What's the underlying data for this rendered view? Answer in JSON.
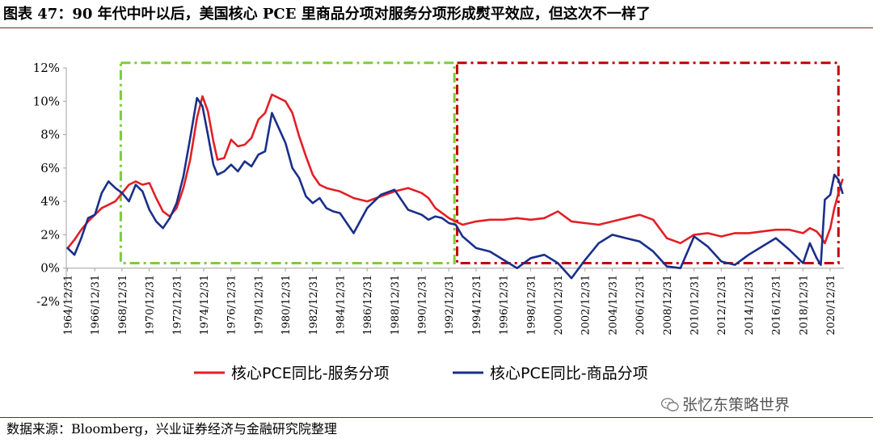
{
  "header": {
    "title": "图表 47：90 年代中叶以后，美国核心 PCE 里商品分项对服务分项形成熨平效应，但这次不一样了"
  },
  "footer": {
    "source": "数据来源：Bloomberg，兴业证券经济与金融研究院整理",
    "watermark": "张忆东策略世界",
    "watermark_icon": "wechat-icon"
  },
  "colors": {
    "services": "#e31f26",
    "goods": "#1a2f8a",
    "green_box": "#7dcc3a",
    "red_box": "#c00000",
    "axis": "#a0a0a0"
  },
  "chart_data": {
    "type": "line",
    "title": "",
    "xlabel": "",
    "ylabel": "",
    "ylim": [
      -2,
      12
    ],
    "xlim": [
      1964.9,
      2022.0
    ],
    "y_ticks": [
      -2,
      0,
      2,
      4,
      6,
      8,
      10,
      12
    ],
    "y_tick_labels": [
      "-2%",
      "0%",
      "2%",
      "4%",
      "6%",
      "8%",
      "10%",
      "12%"
    ],
    "x_ticks": [
      1964.99,
      1966.99,
      1968.99,
      1970.99,
      1972.99,
      1974.99,
      1976.99,
      1978.99,
      1980.99,
      1982.99,
      1984.99,
      1986.99,
      1988.99,
      1990.99,
      1992.99,
      1994.99,
      1996.99,
      1998.99,
      2000.99,
      2002.99,
      2004.99,
      2006.99,
      2008.99,
      2010.99,
      2012.99,
      2014.99,
      2016.99,
      2018.99,
      2020.99
    ],
    "x_tick_labels": [
      "1964/12/31",
      "1966/12/31",
      "1968/12/31",
      "1970/12/31",
      "1972/12/31",
      "1974/12/31",
      "1976/12/31",
      "1978/12/31",
      "1980/12/31",
      "1982/12/31",
      "1984/12/31",
      "1986/12/31",
      "1988/12/31",
      "1990/12/31",
      "1992/12/31",
      "1994/12/31",
      "1996/12/31",
      "1998/12/31",
      "2000/12/31",
      "2002/12/31",
      "2004/12/31",
      "2006/12/31",
      "2008/12/31",
      "2010/12/31",
      "2012/12/31",
      "2014/12/31",
      "2016/12/31",
      "2018/12/31",
      "2020/12/31"
    ],
    "legend": "bottom-center",
    "series": [
      {
        "name": "核心PCE同比-服务分项",
        "color": "#e31f26",
        "x": [
          1965.0,
          1965.5,
          1966.0,
          1966.5,
          1967.0,
          1967.5,
          1968.0,
          1968.5,
          1969.0,
          1969.5,
          1970.0,
          1970.5,
          1971.0,
          1971.5,
          1972.0,
          1972.5,
          1973.0,
          1973.5,
          1974.0,
          1974.5,
          1974.9,
          1975.3,
          1975.7,
          1976.0,
          1976.5,
          1977.0,
          1977.5,
          1978.0,
          1978.5,
          1979.0,
          1979.5,
          1980.0,
          1980.5,
          1981.0,
          1981.5,
          1982.0,
          1982.5,
          1983.0,
          1983.5,
          1984.0,
          1984.5,
          1985.0,
          1986.0,
          1987.0,
          1988.0,
          1989.0,
          1990.0,
          1991.0,
          1991.5,
          1992.0,
          1992.5,
          1993.0,
          1993.5,
          1994.0,
          1995.0,
          1996.0,
          1997.0,
          1998.0,
          1999.0,
          2000.0,
          2001.0,
          2002.0,
          2003.0,
          2004.0,
          2005.0,
          2006.0,
          2007.0,
          2008.0,
          2009.0,
          2010.0,
          2011.0,
          2012.0,
          2013.0,
          2014.0,
          2015.0,
          2016.0,
          2017.0,
          2018.0,
          2019.0,
          2019.5,
          2020.0,
          2020.3,
          2020.6,
          2021.0,
          2021.3,
          2021.6,
          2021.9
        ],
        "values": [
          1.2,
          1.7,
          2.3,
          2.8,
          3.2,
          3.6,
          3.8,
          4.0,
          4.5,
          5.0,
          5.2,
          5.0,
          5.1,
          4.2,
          3.4,
          3.1,
          3.6,
          4.8,
          6.5,
          9.0,
          10.3,
          9.4,
          7.6,
          6.5,
          6.6,
          7.7,
          7.3,
          7.4,
          7.8,
          8.9,
          9.3,
          10.4,
          10.2,
          10.0,
          9.3,
          7.9,
          6.7,
          5.6,
          5.0,
          4.8,
          4.7,
          4.6,
          4.2,
          4.0,
          4.3,
          4.6,
          4.8,
          4.5,
          4.2,
          3.6,
          3.3,
          3.0,
          2.8,
          2.6,
          2.8,
          2.9,
          2.9,
          3.0,
          2.9,
          3.0,
          3.4,
          2.8,
          2.7,
          2.6,
          2.8,
          3.0,
          3.2,
          2.9,
          1.8,
          1.5,
          2.0,
          2.1,
          1.9,
          2.1,
          2.1,
          2.2,
          2.3,
          2.3,
          2.1,
          2.4,
          2.2,
          1.9,
          1.5,
          2.4,
          3.6,
          4.5,
          5.3
        ]
      },
      {
        "name": "核心PCE同比-商品分项",
        "color": "#1a2f8a",
        "x": [
          1965.0,
          1965.5,
          1966.0,
          1966.5,
          1967.0,
          1967.5,
          1968.0,
          1968.5,
          1969.0,
          1969.5,
          1970.0,
          1970.5,
          1971.0,
          1971.5,
          1972.0,
          1972.5,
          1973.0,
          1973.5,
          1974.0,
          1974.5,
          1974.9,
          1975.3,
          1975.7,
          1976.0,
          1976.5,
          1977.0,
          1977.5,
          1978.0,
          1978.5,
          1979.0,
          1979.5,
          1980.0,
          1980.5,
          1981.0,
          1981.5,
          1982.0,
          1982.5,
          1983.0,
          1983.5,
          1984.0,
          1984.5,
          1985.0,
          1986.0,
          1987.0,
          1988.0,
          1989.0,
          1990.0,
          1991.0,
          1991.5,
          1992.0,
          1992.5,
          1993.0,
          1993.5,
          1994.0,
          1995.0,
          1996.0,
          1997.0,
          1998.0,
          1999.0,
          2000.0,
          2001.0,
          2002.0,
          2003.0,
          2004.0,
          2005.0,
          2006.0,
          2007.0,
          2008.0,
          2009.0,
          2010.0,
          2011.0,
          2012.0,
          2013.0,
          2014.0,
          2015.0,
          2016.0,
          2017.0,
          2018.0,
          2019.0,
          2019.5,
          2020.0,
          2020.3,
          2020.6,
          2021.0,
          2021.3,
          2021.6,
          2021.9
        ],
        "values": [
          1.2,
          0.8,
          1.8,
          3.0,
          3.2,
          4.5,
          5.2,
          4.8,
          4.5,
          4.0,
          5.0,
          4.6,
          3.5,
          2.8,
          2.4,
          3.0,
          3.9,
          5.5,
          7.8,
          10.2,
          9.7,
          8.0,
          6.2,
          5.6,
          5.8,
          6.2,
          5.8,
          6.4,
          6.1,
          6.8,
          7.0,
          9.3,
          8.4,
          7.5,
          6.0,
          5.4,
          4.3,
          3.9,
          4.2,
          3.6,
          3.4,
          3.3,
          2.1,
          3.6,
          4.4,
          4.7,
          3.5,
          3.2,
          2.9,
          3.1,
          3.0,
          2.7,
          2.6,
          1.9,
          1.2,
          1.0,
          0.5,
          0.0,
          0.6,
          0.8,
          0.3,
          -0.6,
          0.5,
          1.5,
          2.0,
          1.8,
          1.6,
          1.0,
          0.1,
          0.0,
          1.9,
          1.3,
          0.4,
          0.2,
          0.8,
          1.3,
          1.8,
          1.1,
          0.3,
          1.5,
          0.6,
          0.2,
          4.1,
          4.4,
          5.6,
          5.3,
          4.5
        ]
      }
    ],
    "annotations": [
      {
        "type": "box",
        "style": "dash-dot",
        "color": "#7dcc3a",
        "x_range": [
          1968.9,
          1993.4
        ],
        "y_range": [
          0.3,
          12.3
        ]
      },
      {
        "type": "box",
        "style": "dash-dot",
        "color": "#c00000",
        "x_range": [
          1993.6,
          2021.6
        ],
        "y_range": [
          0.3,
          12.3
        ]
      }
    ]
  }
}
